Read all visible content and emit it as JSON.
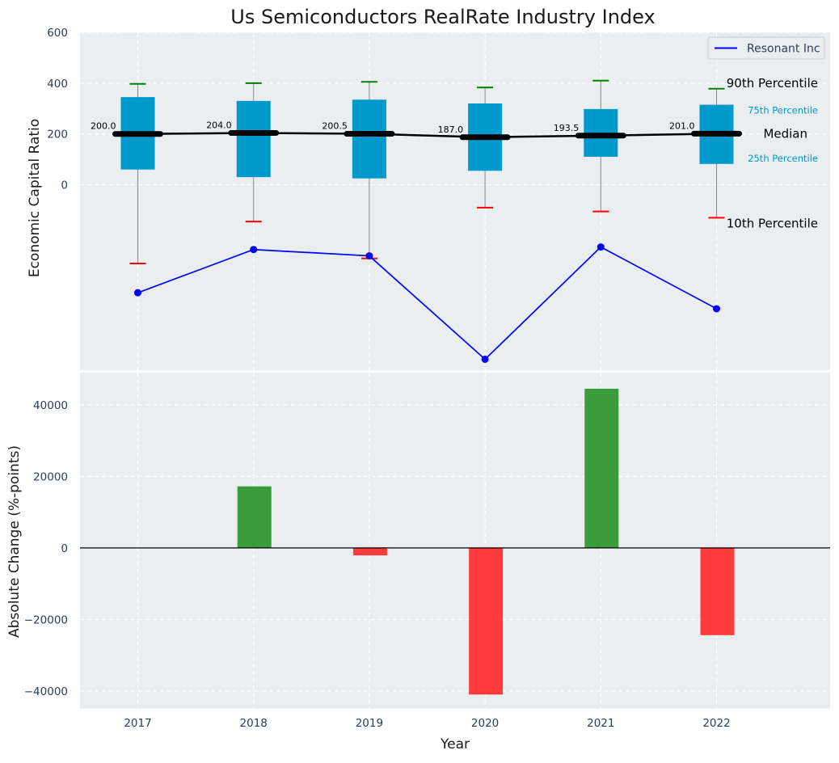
{
  "chart_data": [
    {
      "type": "box",
      "title": "Us Semiconductors RealRate Industry Index",
      "ylabel": "Economic Capital Ratio",
      "xlabel": "",
      "categories": [
        "2017",
        "2018",
        "2019",
        "2020",
        "2021",
        "2022"
      ],
      "ylim": [
        -730,
        600
      ],
      "yticks": [
        0,
        200,
        400,
        600
      ],
      "grid": true,
      "legend": {
        "position": "top-right",
        "entries": [
          "Resonant Inc"
        ]
      },
      "boxes": [
        {
          "p10": -310,
          "q1": 60,
          "median": 200.0,
          "q3": 345,
          "p90": 397
        },
        {
          "p10": -145,
          "q1": 30,
          "median": 204.0,
          "q3": 330,
          "p90": 400
        },
        {
          "p10": -290,
          "q1": 25,
          "median": 200.5,
          "q3": 335,
          "p90": 405
        },
        {
          "p10": -90,
          "q1": 55,
          "median": 187.0,
          "q3": 320,
          "p90": 383
        },
        {
          "p10": -105,
          "q1": 110,
          "median": 193.5,
          "q3": 298,
          "p90": 410
        },
        {
          "p10": -130,
          "q1": 82,
          "median": 201.0,
          "q3": 315,
          "p90": 378
        }
      ],
      "median_labels": [
        "200.0",
        "204.0",
        "200.5",
        "187.0",
        "193.5",
        "201.0"
      ],
      "series": [
        {
          "name": "Resonant Inc",
          "color": "#0000ff",
          "values": [
            -425,
            -255,
            -280,
            -687,
            -245,
            -488
          ]
        }
      ],
      "annotations": {
        "p90": "90th Percentile",
        "q3": "75th Percentile",
        "median": "Median",
        "q1": "25th Percentile",
        "p10": "10th Percentile"
      },
      "colors": {
        "box": "#0099cc",
        "median": "#000000",
        "whisker_top": "#008000",
        "whisker_bottom": "#ff0000"
      }
    },
    {
      "type": "bar",
      "xlabel": "Year",
      "ylabel": "Absolute Change (%-points)",
      "categories": [
        "2017",
        "2018",
        "2019",
        "2020",
        "2021",
        "2022"
      ],
      "values": [
        0,
        17200,
        -2100,
        -41000,
        44500,
        -24400
      ],
      "ylim": [
        -45000,
        49000
      ],
      "yticks": [
        -40000,
        -20000,
        0,
        20000,
        40000
      ],
      "grid": true,
      "colors": {
        "positive": "#3a9c3a",
        "negative": "#ff3b3b"
      }
    }
  ]
}
